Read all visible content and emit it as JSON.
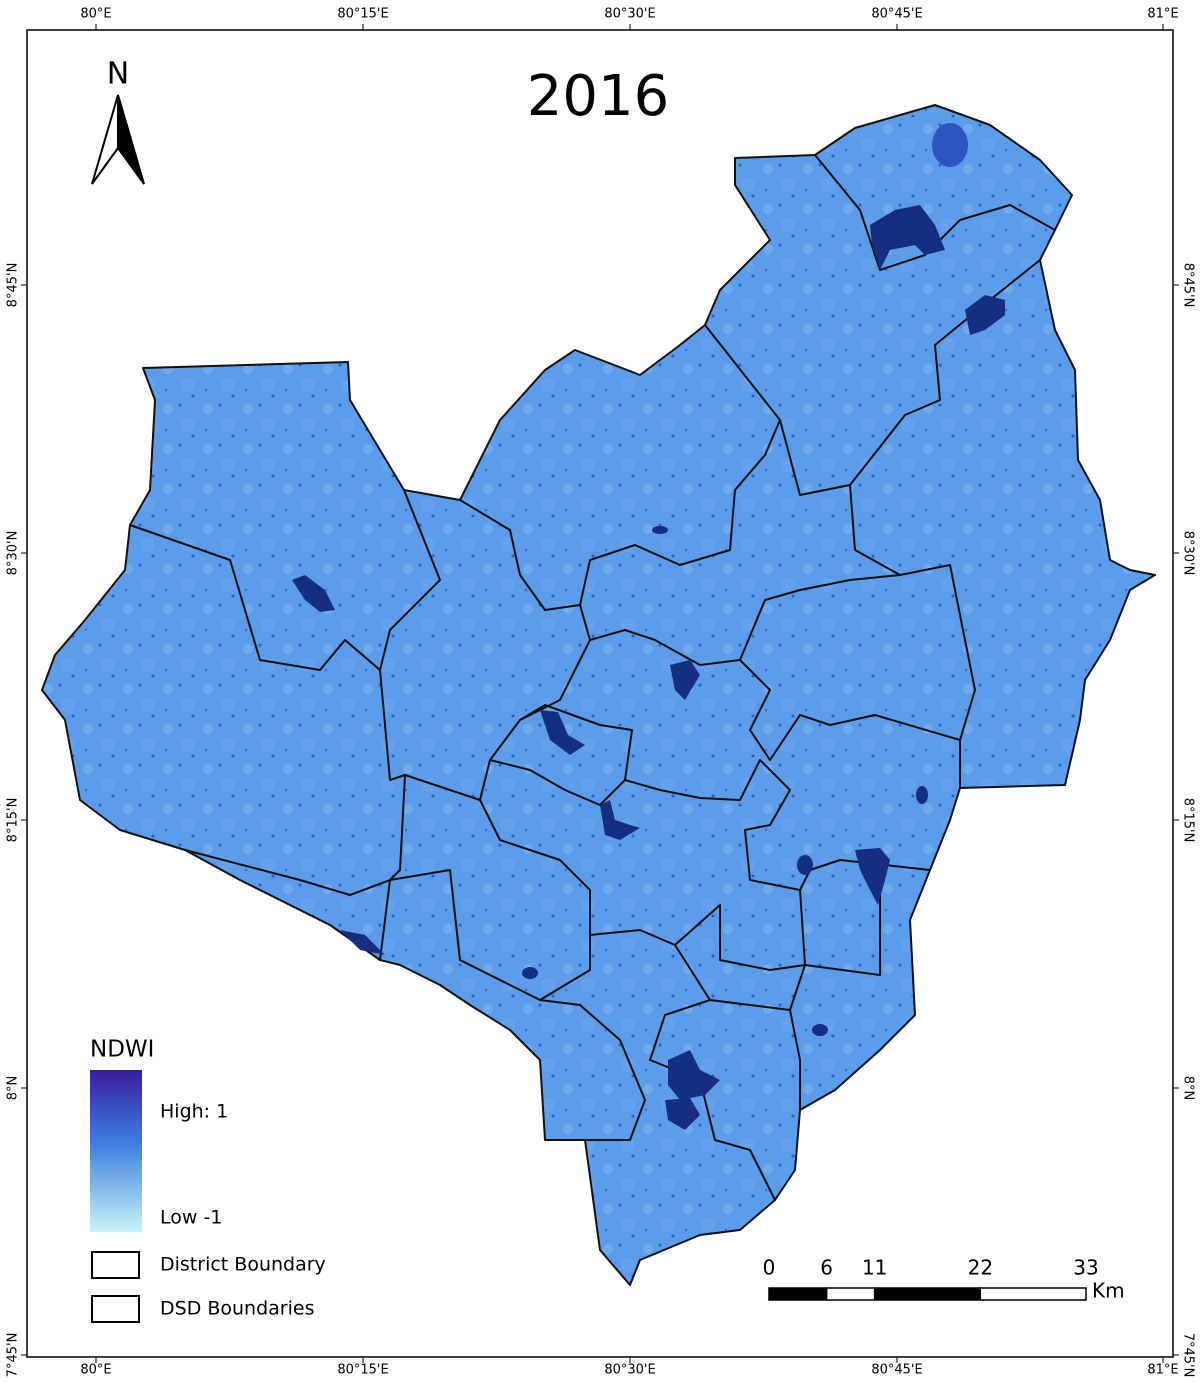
{
  "title": "2016",
  "north_label": "N",
  "longitude_labels": [
    "80°E",
    "80°15'E",
    "80°30'E",
    "80°45'E",
    "81°E"
  ],
  "latitude_labels": [
    "8°45'N",
    "8°30'N",
    "8°15'N",
    "8°N",
    "7°45'N"
  ],
  "legend": {
    "title": "NDWI",
    "high": "High: 1",
    "low": "Low -1",
    "items": [
      "District Boundary",
      "DSD Boundaries"
    ]
  },
  "scale_bar": {
    "ticks": [
      0,
      6,
      11,
      22,
      33
    ],
    "unit": "Km"
  }
}
